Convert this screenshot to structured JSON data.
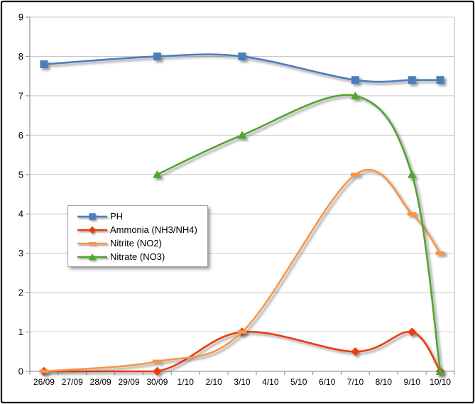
{
  "chart_data": {
    "type": "line",
    "smoothed": true,
    "title": "",
    "xlabel": "",
    "ylabel": "",
    "categories": [
      "26/09",
      "27/09",
      "28/09",
      "29/09",
      "30/09",
      "1/10",
      "2/10",
      "3/10",
      "4/10",
      "5/10",
      "6/10",
      "7/10",
      "8/10",
      "9/10",
      "10/10"
    ],
    "y_ticks": [
      0,
      1,
      2,
      3,
      4,
      5,
      6,
      7,
      8,
      9
    ],
    "ylim": [
      0,
      9
    ],
    "grid": true,
    "legend_position": "middle-left",
    "series": [
      {
        "name": "PH",
        "color": "#4A7EBB",
        "marker": "square",
        "points": [
          [
            0,
            7.8
          ],
          [
            4,
            8.0
          ],
          [
            7,
            8.0
          ],
          [
            11,
            7.4
          ],
          [
            13,
            7.4
          ],
          [
            14,
            7.4
          ]
        ]
      },
      {
        "name": "Ammonia (NH3/NH4)",
        "color": "#EE3A0C",
        "marker": "diamond",
        "points": [
          [
            0,
            0
          ],
          [
            4,
            0
          ],
          [
            7,
            1.0
          ],
          [
            11,
            0.5
          ],
          [
            13,
            1.0
          ],
          [
            14,
            0
          ]
        ]
      },
      {
        "name": "Nitrite (NO2)",
        "color": "#F79646",
        "marker": "dash",
        "points": [
          [
            0,
            0
          ],
          [
            4,
            0.25
          ],
          [
            7,
            1.0
          ],
          [
            11,
            5.0
          ],
          [
            13,
            4.0
          ],
          [
            14,
            3.0
          ]
        ]
      },
      {
        "name": "Nitrate (NO3)",
        "color": "#4FA52D",
        "marker": "triangle",
        "points": [
          [
            4,
            5.0
          ],
          [
            7,
            6.0
          ],
          [
            11,
            7.0
          ],
          [
            13,
            5.0
          ],
          [
            14,
            0
          ]
        ]
      }
    ]
  },
  "style": {
    "plot_background": "#ffffff",
    "frame_border_color": "#000000",
    "grid_color": "#c8c8c8",
    "axis_color": "#9c9c9c",
    "right_edge_color": "#b4b4b4",
    "tick_text_color": "#000000",
    "legend_border_color": "#a3a3a3"
  }
}
